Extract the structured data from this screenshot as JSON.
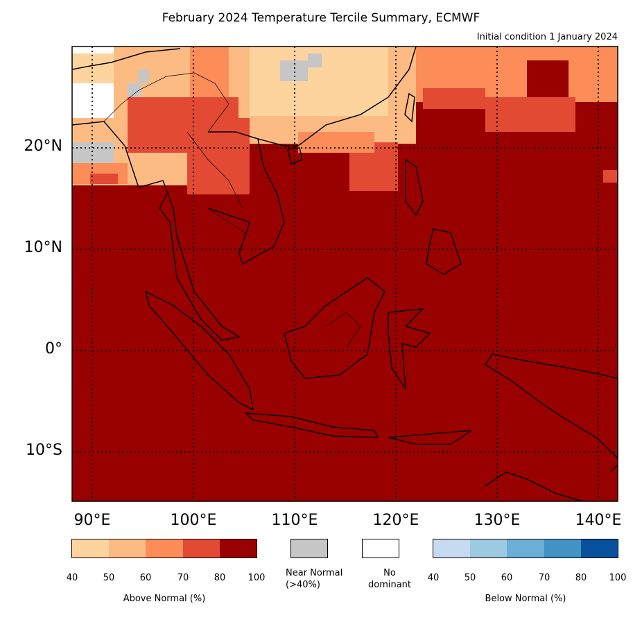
{
  "header": {
    "title": "February 2024 Temperature Tercile Summary, ECMWF",
    "subtitle": "Initial condition 1 January 2024"
  },
  "axes": {
    "lat_labels": [
      "20°N",
      "10°N",
      "0°",
      "10°S"
    ],
    "lon_labels": [
      "90°E",
      "100°E",
      "110°E",
      "120°E",
      "130°E",
      "140°E"
    ],
    "extent": {
      "lon": [
        88,
        142
      ],
      "lat": [
        -15,
        30
      ]
    },
    "gridlines": "dotted"
  },
  "legend": {
    "above": {
      "title": "Above Normal (%)",
      "ticks": [
        "40",
        "50",
        "60",
        "70",
        "80",
        "100"
      ],
      "colors": [
        "#fdd49e",
        "#fdbb84",
        "#fc8d59",
        "#e34a33",
        "#990000"
      ]
    },
    "near": {
      "label_line1": "Near Normal",
      "label_line2": "(>40%)",
      "color": "#c6c6c6"
    },
    "none": {
      "label_line1": "No",
      "label_line2": "dominant",
      "color": "#ffffff"
    },
    "below": {
      "title": "Below Normal (%)",
      "ticks": [
        "40",
        "50",
        "60",
        "70",
        "80",
        "100"
      ],
      "colors": [
        "#c6dbef",
        "#9ecae1",
        "#6baed6",
        "#4292c6",
        "#08519c"
      ]
    }
  },
  "map": {
    "dominant_category": "Above Normal",
    "dominant_color": "#990000",
    "region": "Southeast Asia / Maritime Continent"
  }
}
